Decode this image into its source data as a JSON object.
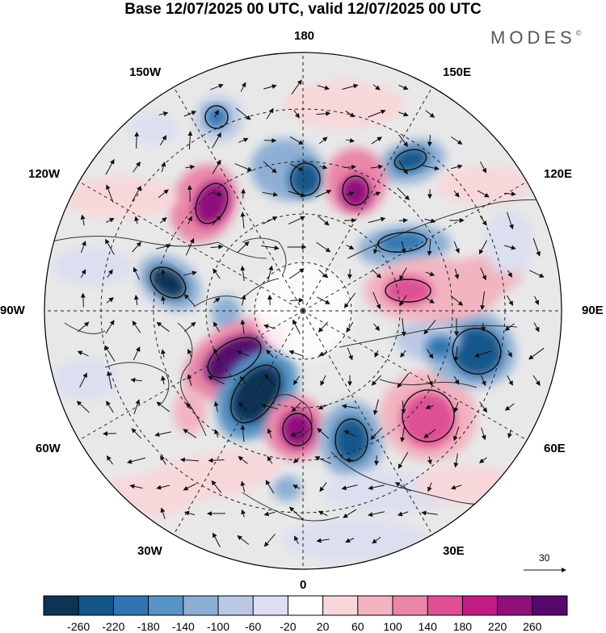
{
  "title": "Base 12/07/2025 00 UTC, valid 12/07/2025 00 UTC",
  "brand": "MODES",
  "brand_mark": "©",
  "longitude_labels": {
    "top": "180",
    "top_left": "150W",
    "top_right": "150E",
    "upper_left": "120W",
    "upper_right": "120E",
    "left": "90W",
    "right": "90E",
    "lower_left": "60W",
    "lower_right": "60E",
    "bottom_left": "30W",
    "bottom_right": "30E",
    "bottom": "0"
  },
  "reference_vector_label": "30",
  "colorbar": {
    "ticks": [
      "-260",
      "-220",
      "-180",
      "-140",
      "-100",
      "-60",
      "-20",
      "20",
      "60",
      "100",
      "140",
      "180",
      "220",
      "260"
    ],
    "colors": [
      "#0d3355",
      "#15568a",
      "#2e75b1",
      "#5994c6",
      "#8eafd5",
      "#bac8e4",
      "#dcdff0",
      "#ffffff",
      "#f8d7da",
      "#f2b4c0",
      "#ea86a8",
      "#de4f93",
      "#c21c84",
      "#8f0f7b",
      "#55096c"
    ]
  },
  "map_colors": {
    "background": "#e8e8e8",
    "coast": "#333333",
    "grid": "#222222"
  }
}
